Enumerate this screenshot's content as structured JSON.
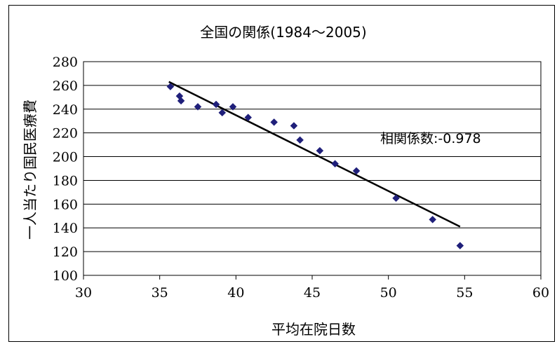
{
  "chart_data": {
    "type": "scatter",
    "title": "全国の関係(1984～2005)",
    "xlabel": "平均在院日数",
    "ylabel": "一人当たり国民医療費",
    "xlim": [
      30,
      60
    ],
    "ylim": [
      100,
      280
    ],
    "x_ticks": [
      30,
      35,
      40,
      45,
      50,
      55,
      60
    ],
    "y_ticks": [
      100,
      120,
      140,
      160,
      180,
      200,
      220,
      240,
      260,
      280
    ],
    "grid": "horizontal",
    "legend": "none",
    "points": [
      {
        "x": 35.7,
        "y": 259
      },
      {
        "x": 36.3,
        "y": 251
      },
      {
        "x": 36.4,
        "y": 247
      },
      {
        "x": 37.5,
        "y": 242
      },
      {
        "x": 38.7,
        "y": 244
      },
      {
        "x": 39.1,
        "y": 237
      },
      {
        "x": 39.8,
        "y": 242
      },
      {
        "x": 40.8,
        "y": 233
      },
      {
        "x": 42.5,
        "y": 229
      },
      {
        "x": 43.8,
        "y": 226
      },
      {
        "x": 44.2,
        "y": 214
      },
      {
        "x": 45.5,
        "y": 205
      },
      {
        "x": 46.5,
        "y": 194
      },
      {
        "x": 47.9,
        "y": 188
      },
      {
        "x": 50.5,
        "y": 165
      },
      {
        "x": 52.9,
        "y": 147
      },
      {
        "x": 54.7,
        "y": 125
      }
    ],
    "trendline": {
      "x": [
        35.6,
        54.7
      ],
      "y": [
        263,
        141
      ]
    },
    "annotation": "相関係数:-0.978",
    "colors": {
      "marker": "#1f1f7a",
      "trendline": "#000000",
      "grid": "#000000"
    }
  }
}
